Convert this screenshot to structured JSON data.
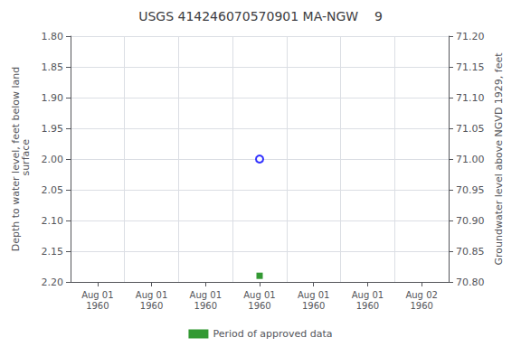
{
  "chart_data": {
    "type": "scatter",
    "title": "USGS 414246070570901 MA-NGW    9",
    "ylabel": "Depth to water level, feet below land\n surface",
    "y2label": "Groundwater level above NGVD 1929, feet",
    "categories": [
      "Aug 01\n1960",
      "Aug 01\n1960",
      "Aug 01\n1960",
      "Aug 01\n1960",
      "Aug 01\n1960",
      "Aug 01\n1960",
      "Aug 02\n1960"
    ],
    "series": [
      {
        "color": "blue",
        "marker": "open_circle",
        "values": [
          null,
          null,
          null,
          2.0,
          null,
          null,
          null
        ]
      },
      {
        "name": "Period of approved data",
        "color": "#008000",
        "marker": "square",
        "values": [
          null,
          null,
          null,
          2.19,
          null,
          null,
          null
        ]
      }
    ],
    "ylim": [
      2.2,
      1.8
    ],
    "yticks": [
      {
        "value": 1.8,
        "label": "1.80"
      },
      {
        "value": 1.85,
        "label": "1.85"
      },
      {
        "value": 1.9,
        "label": "1.90"
      },
      {
        "value": 1.95,
        "label": "1.95"
      },
      {
        "value": 2.0,
        "label": "2.00"
      },
      {
        "value": 2.05,
        "label": "2.05"
      },
      {
        "value": 2.1,
        "label": "2.10"
      },
      {
        "value": 2.15,
        "label": "2.15"
      },
      {
        "value": 2.2,
        "label": "2.20"
      }
    ],
    "y2lim": [
      70.8,
      71.2
    ],
    "y2ticks": [
      {
        "value": 70.8,
        "label": "70.80"
      },
      {
        "value": 70.85,
        "label": "70.85"
      },
      {
        "value": 70.9,
        "label": "70.90"
      },
      {
        "value": 70.95,
        "label": "70.95"
      },
      {
        "value": 71.0,
        "label": "71.00"
      },
      {
        "value": 71.05,
        "label": "71.05"
      },
      {
        "value": 71.1,
        "label": "71.10"
      },
      {
        "value": 71.15,
        "label": "71.15"
      },
      {
        "value": 71.2,
        "label": "71.20"
      }
    ],
    "grid": true,
    "legend": "bottom"
  }
}
